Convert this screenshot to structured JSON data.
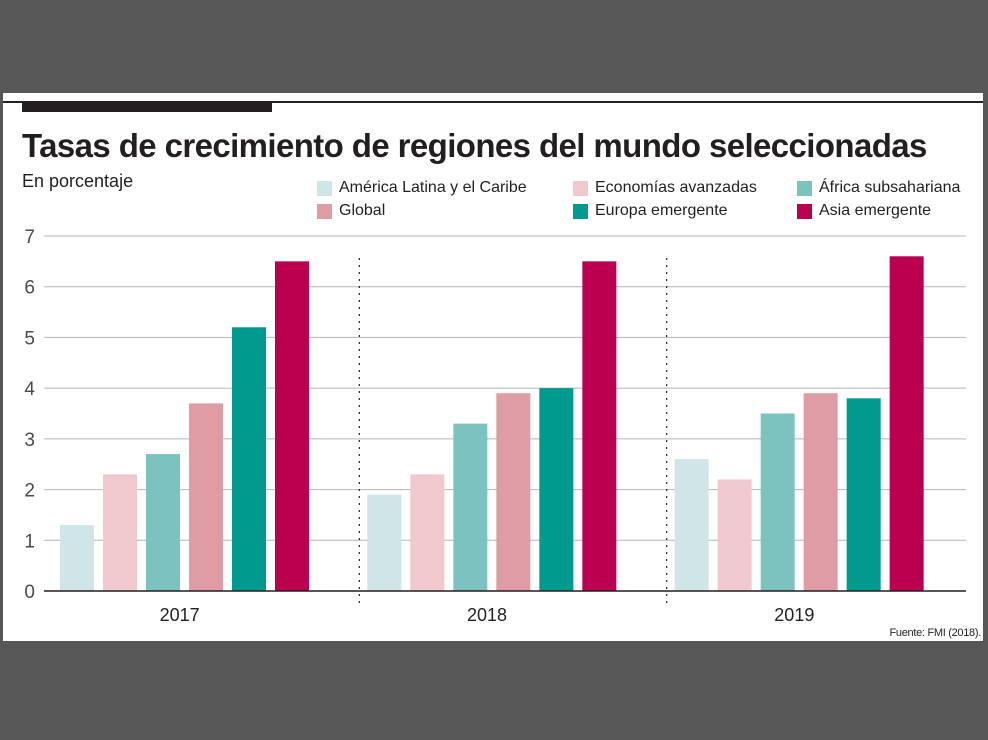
{
  "title": "Tasas de crecimiento de regiones del mundo seleccionadas",
  "subtitle": "En porcentaje",
  "source": "Fuente: FMI (2018).",
  "legend": [
    {
      "label": "América Latina y el Caribe",
      "color": "#cfe5e7"
    },
    {
      "label": "Economías avanzadas",
      "color": "#f0c9cf"
    },
    {
      "label": "África subsahariana",
      "color": "#7cc2bf"
    },
    {
      "label": "Global",
      "color": "#df9ca5"
    },
    {
      "label": "Europa emergente",
      "color": "#009a8e"
    },
    {
      "label": "Asia emergente",
      "color": "#bb0050"
    }
  ],
  "chart_data": {
    "type": "bar",
    "title": "Tasas de crecimiento de regiones del mundo seleccionadas",
    "subtitle": "En porcentaje",
    "xlabel": "",
    "ylabel": "",
    "ylim": [
      0,
      7
    ],
    "yticks": [
      "0",
      "1",
      "2",
      "3",
      "4",
      "5",
      "6",
      "7"
    ],
    "grid": true,
    "legend_position": "top-right",
    "categories": [
      "2017",
      "2018",
      "2019"
    ],
    "series": [
      {
        "name": "América Latina y el Caribe",
        "color": "#cfe5e7",
        "values": [
          1.3,
          1.9,
          2.6
        ]
      },
      {
        "name": "Economías avanzadas",
        "color": "#f0c9cf",
        "values": [
          2.3,
          2.3,
          2.2
        ]
      },
      {
        "name": "África subsahariana",
        "color": "#7cc2bf",
        "values": [
          2.7,
          3.3,
          3.5
        ]
      },
      {
        "name": "Global",
        "color": "#df9ca5",
        "values": [
          3.7,
          3.9,
          3.9
        ]
      },
      {
        "name": "Europa emergente",
        "color": "#009a8e",
        "values": [
          5.2,
          4.0,
          3.8
        ]
      },
      {
        "name": "Asia emergente",
        "color": "#bb0050",
        "values": [
          6.5,
          6.5,
          6.6
        ]
      }
    ],
    "source": "Fuente: FMI (2018)."
  }
}
